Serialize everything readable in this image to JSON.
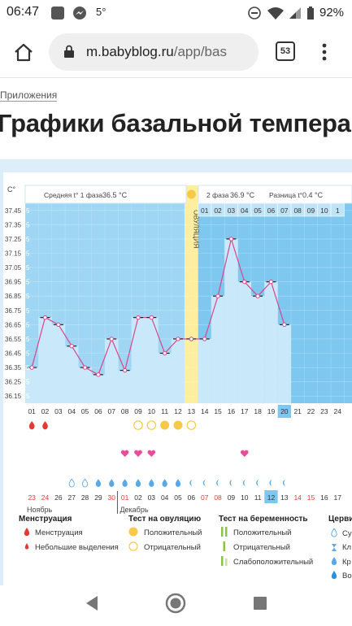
{
  "status": {
    "time": "06:47",
    "temp": "5°",
    "battery": "92%"
  },
  "browser": {
    "url_host": "m.babyblog.ru",
    "url_path": "/app/bas",
    "tab_count": "53"
  },
  "page": {
    "breadcrumb": "Приложения",
    "title": "Графики базальной темпера"
  },
  "chart_header": {
    "unit": "C°",
    "phase1_label": "Средняя t° 1 фаза",
    "phase1_value": "36.5 °C",
    "phase2_label": "2 фаза",
    "phase2_value": "36.9 °C",
    "diff_label": "Разница t°",
    "diff_value": "0.4 °C",
    "ovulation_label": "ОВУЛЯЦИЯ"
  },
  "chart_data": {
    "type": "line",
    "ylim": [
      36.1,
      37.5
    ],
    "y_ticks": [
      "37.45",
      "37.35",
      "37.25",
      "37.15",
      "37.05",
      "36.95",
      "36.85",
      "36.75",
      "36.65",
      "36.55",
      "36.45",
      "36.35",
      "36.25",
      "36.15"
    ],
    "y_tick_trunc": [
      "5",
      "5",
      "5",
      "5",
      "5",
      "5",
      "5",
      "5",
      "5",
      "5",
      "5",
      "5",
      "5",
      "5"
    ],
    "cycle_days": [
      "01",
      "02",
      "03",
      "04",
      "05",
      "06",
      "07",
      "08",
      "09",
      "10",
      "11",
      "12",
      "13",
      "14",
      "15",
      "16",
      "17",
      "18",
      "19",
      "20",
      "21",
      "22",
      "23",
      "24"
    ],
    "top_phase2_days": [
      "01",
      "02",
      "03",
      "04",
      "05",
      "06",
      "07",
      "08",
      "09",
      "10",
      "1"
    ],
    "current_day": "20",
    "ovulation_day": "13",
    "temperatures": [
      36.35,
      36.7,
      36.65,
      36.5,
      36.35,
      36.3,
      36.55,
      36.33,
      36.7,
      36.7,
      36.45,
      36.55,
      36.55,
      36.55,
      36.85,
      37.25,
      36.95,
      36.85,
      36.95,
      36.65
    ],
    "line_color": "#d9468a",
    "bar_color": "#c9e9fb",
    "phase1_bg": "#9ed6f4",
    "phase2_bg": "#7ec8f0",
    "ovulation_color": "#fdeea0",
    "dates": [
      "23",
      "24",
      "26",
      "27",
      "28",
      "29",
      "30",
      "01",
      "02",
      "03",
      "04",
      "05",
      "06",
      "07",
      "08",
      "09",
      "10",
      "11",
      "12",
      "13",
      "14",
      "15",
      "16",
      "17"
    ],
    "red_dates": [
      "23",
      "24",
      "30",
      "01",
      "07",
      "08",
      "14",
      "15"
    ],
    "today_date": "12",
    "month1": "Ноябрь",
    "month2": "Декабрь",
    "menstruation_days": [
      1,
      2
    ],
    "ovulation_test_days": [
      {
        "day": 9,
        "result": "negative"
      },
      {
        "day": 10,
        "result": "negative"
      },
      {
        "day": 11,
        "result": "positive"
      },
      {
        "day": 12,
        "result": "positive"
      },
      {
        "day": 13,
        "result": "negative"
      }
    ],
    "heart_days": [
      8,
      9,
      10,
      17
    ]
  },
  "legend": {
    "menstruation": {
      "title": "Менструация",
      "items": [
        "Менструация",
        "Небольшие выделения"
      ]
    },
    "ovulation_test": {
      "title": "Тест на овуляцию",
      "items": [
        "Положительный",
        "Отрицательный"
      ]
    },
    "pregnancy_test": {
      "title": "Тест на беременность",
      "items": [
        "Положительный",
        "Отрицательный",
        "Слабоположительный"
      ]
    },
    "cervix": {
      "title": "Церви",
      "items": [
        "Су",
        "Кл",
        "Кр",
        "Во"
      ]
    }
  }
}
